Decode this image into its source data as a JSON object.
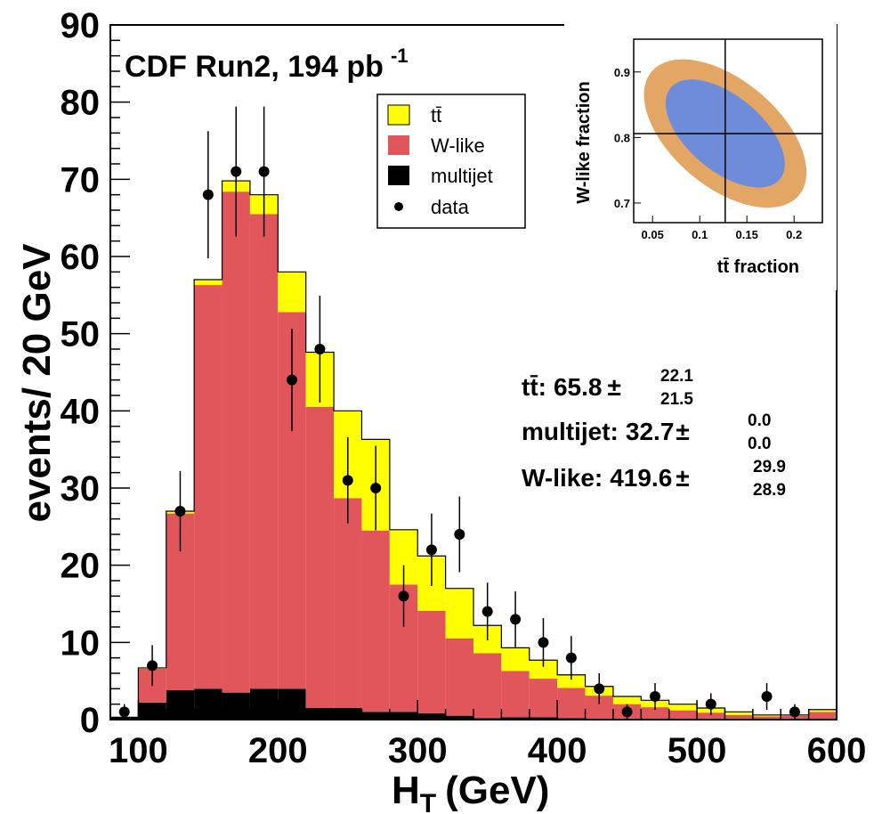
{
  "chart_data": {
    "type": "bar",
    "subtype": "stacked-histogram",
    "title": "CDF Run2, 194 pb",
    "title_superscript": "-1",
    "xlabel": "H",
    "xlabel_subscript": "T",
    "xlabel_unit": "(GeV)",
    "ylabel": "events/ 20 GeV",
    "xlim": [
      80,
      600
    ],
    "ylim": [
      0,
      90
    ],
    "x_ticks": [
      "100",
      "200",
      "300",
      "400",
      "500",
      "600"
    ],
    "y_ticks": [
      "0",
      "10",
      "20",
      "30",
      "40",
      "50",
      "60",
      "70",
      "80",
      "90"
    ],
    "bin_edges": [
      80,
      100,
      120,
      140,
      160,
      180,
      200,
      220,
      240,
      260,
      280,
      300,
      320,
      340,
      360,
      380,
      400,
      420,
      440,
      460,
      480,
      500,
      520,
      540,
      560,
      580,
      600
    ],
    "series": [
      {
        "name": "multijet",
        "color": "#000000",
        "values": [
          0.3,
          2.2,
          3.8,
          4.0,
          3.5,
          4.0,
          4.0,
          1.5,
          1.5,
          1.0,
          1.0,
          0.8,
          0.5,
          0.2,
          0.3,
          0.3,
          0.2,
          0.1,
          0.0,
          0.0,
          0.0,
          0.0,
          0.0,
          0.0,
          0.0,
          0.0
        ]
      },
      {
        "name": "W-like",
        "color": "#e0565a",
        "values": [
          0.0,
          4.4,
          22.9,
          52.3,
          64.9,
          61.5,
          48.8,
          39.0,
          27.2,
          23.5,
          16.5,
          13.3,
          10.0,
          8.4,
          6.0,
          5.0,
          3.9,
          3.0,
          2.0,
          1.6,
          1.2,
          0.9,
          0.6,
          0.4,
          0.5,
          1.0
        ]
      },
      {
        "name": "tt̄",
        "color": "#ffff00",
        "values": [
          0.0,
          0.1,
          0.3,
          0.7,
          1.4,
          2.5,
          5.2,
          7.1,
          11.3,
          11.8,
          7.1,
          7.1,
          6.5,
          3.6,
          3.0,
          2.4,
          1.7,
          1.2,
          1.0,
          0.9,
          0.8,
          0.6,
          0.4,
          0.2,
          0.1,
          0.3
        ]
      }
    ],
    "data_points": {
      "name": "data",
      "x": [
        90,
        110,
        130,
        150,
        170,
        190,
        210,
        230,
        250,
        270,
        290,
        310,
        330,
        350,
        370,
        390,
        410,
        430,
        450,
        470,
        490,
        510,
        530,
        550,
        570,
        590
      ],
      "y": [
        1,
        7,
        27,
        68,
        71,
        71,
        44,
        48,
        31,
        30,
        16,
        22,
        24,
        14,
        13,
        10,
        8,
        4,
        1,
        3,
        0,
        2,
        0,
        3,
        1,
        0
      ]
    },
    "legend_position": "top-center",
    "legend": [
      "tt̄",
      "W-like",
      "multijet",
      "data"
    ],
    "inset": {
      "type": "contour",
      "xlabel": "tt̄ fraction",
      "ylabel": "W-like fraction",
      "xlim": [
        0.03,
        0.23
      ],
      "ylim": [
        0.67,
        0.95
      ],
      "x_ticks": [
        "0.05",
        "0.1",
        "0.15",
        "0.2"
      ],
      "y_ticks": [
        "0.7",
        "0.8",
        "0.9"
      ],
      "best_fit": {
        "x": 0.127,
        "y": 0.806
      },
      "contours": [
        {
          "level": "outer",
          "color": "#e4a664"
        },
        {
          "level": "inner",
          "color": "#6e8cda"
        }
      ]
    },
    "fit_results": [
      {
        "label": "tt̄:",
        "value": "65.8",
        "plus": "22.1",
        "minus": "21.5"
      },
      {
        "label": "multijet:",
        "value": "32.7",
        "plus": "0.0",
        "minus": "0.0"
      },
      {
        "label": "W-like:",
        "value": "419.6",
        "plus": "29.9",
        "minus": "28.9"
      }
    ]
  }
}
